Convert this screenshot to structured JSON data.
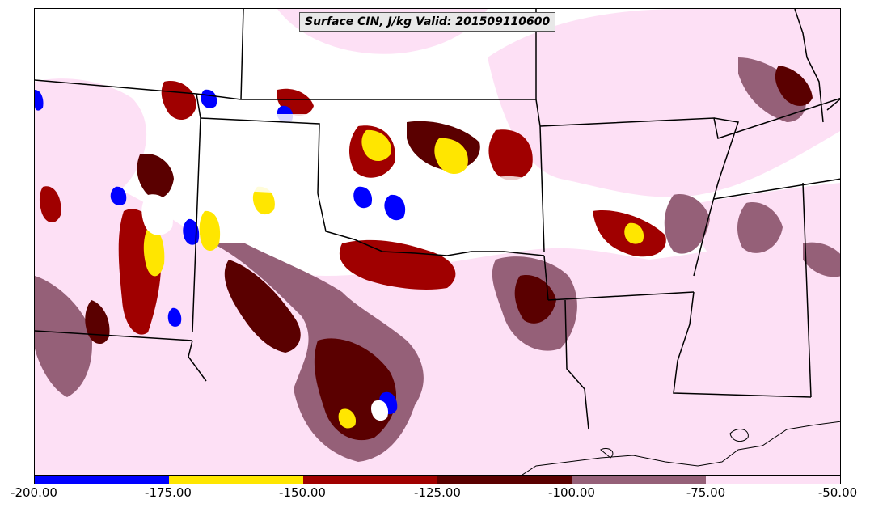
{
  "title": "Surface CIN, J/kg Valid: 201509110600",
  "colorbar": {
    "tick_labels": [
      "-200.00",
      "-175.00",
      "-150.00",
      "-125.00",
      "-100.00",
      "-75.00",
      "-50.00"
    ],
    "colors": [
      "#0000ff",
      "#ffe600",
      "#a00000",
      "#5a0000",
      "#956078",
      "#fde0f5"
    ]
  },
  "colors": {
    "blue": "#0000ff",
    "yellow": "#ffe600",
    "red": "#a00000",
    "darkred": "#5a0000",
    "mauve": "#956078",
    "pink": "#fde0f5",
    "boundary": "#000000"
  }
}
